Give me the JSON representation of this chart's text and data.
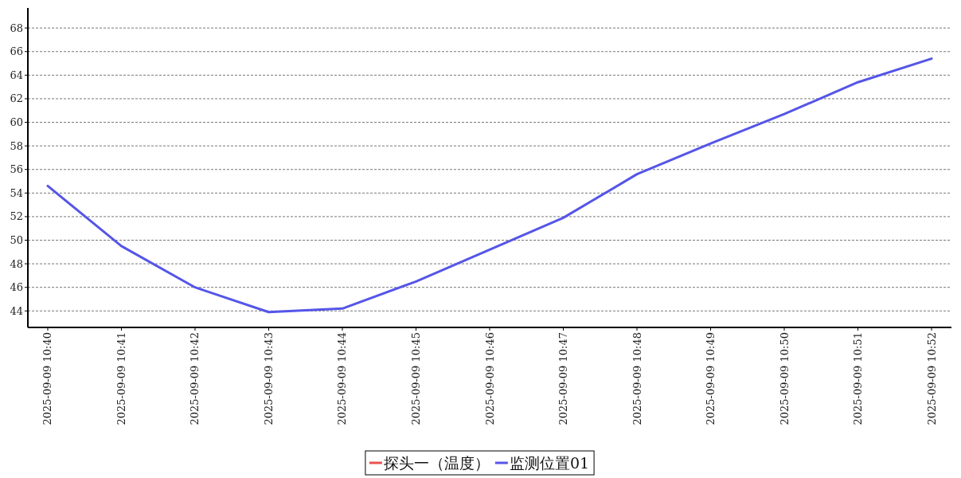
{
  "chart_data": {
    "type": "line",
    "categories": [
      "2025-09-09 10:40",
      "2025-09-09 10:41",
      "2025-09-09 10:42",
      "2025-09-09 10:43",
      "2025-09-09 10:44",
      "2025-09-09 10:45",
      "2025-09-09 10:46",
      "2025-09-09 10:47",
      "2025-09-09 10:48",
      "2025-09-09 10:49",
      "2025-09-09 10:50",
      "2025-09-09 10:51",
      "2025-09-09 10:52"
    ],
    "series": [
      {
        "name": "探头一（温度）",
        "color": "#e8534f",
        "values": [
          null,
          null,
          null,
          null,
          null,
          null,
          null,
          null,
          null,
          null,
          null,
          null,
          null
        ]
      },
      {
        "name": "监测位置01",
        "color": "#5555e8",
        "values": [
          54.6,
          49.5,
          46.0,
          43.9,
          44.2,
          46.5,
          49.2,
          51.9,
          55.6,
          58.2,
          60.7,
          63.4,
          65.4
        ]
      }
    ],
    "ylim": [
      42.6,
      69.7
    ],
    "yticks": [
      44,
      46,
      48,
      50,
      52,
      54,
      56,
      58,
      60,
      62,
      64,
      66,
      68
    ],
    "grid": "y",
    "legend": "bottom",
    "marker": "none",
    "line_style": "solid"
  }
}
